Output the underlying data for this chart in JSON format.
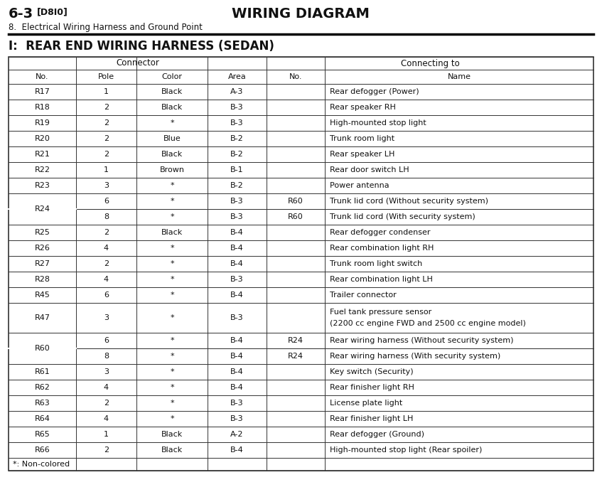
{
  "page_header_left_num": "6-3",
  "page_header_left_tag": "[D8I0]",
  "page_header_center": "WIRING DIAGRAM",
  "page_subheader": "8.  Electrical Wiring Harness and Ground Point",
  "section_title": "I:  REAR END WIRING HARNESS (SEDAN)",
  "rows": [
    {
      "no": "R17",
      "pole": "1",
      "color": "Black",
      "area": "A-3",
      "conn_no": "",
      "name": "Rear defogger (Power)",
      "merged": false,
      "tall": false
    },
    {
      "no": "R18",
      "pole": "2",
      "color": "Black",
      "area": "B-3",
      "conn_no": "",
      "name": "Rear speaker RH",
      "merged": false,
      "tall": false
    },
    {
      "no": "R19",
      "pole": "2",
      "color": "*",
      "area": "B-3",
      "conn_no": "",
      "name": "High-mounted stop light",
      "merged": false,
      "tall": false
    },
    {
      "no": "R20",
      "pole": "2",
      "color": "Blue",
      "area": "B-2",
      "conn_no": "",
      "name": "Trunk room light",
      "merged": false,
      "tall": false
    },
    {
      "no": "R21",
      "pole": "2",
      "color": "Black",
      "area": "B-2",
      "conn_no": "",
      "name": "Rear speaker LH",
      "merged": false,
      "tall": false
    },
    {
      "no": "R22",
      "pole": "1",
      "color": "Brown",
      "area": "B-1",
      "conn_no": "",
      "name": "Rear door switch LH",
      "merged": false,
      "tall": false
    },
    {
      "no": "R23",
      "pole": "3",
      "color": "*",
      "area": "B-2",
      "conn_no": "",
      "name": "Power antenna",
      "merged": false,
      "tall": false
    },
    {
      "no": "R24",
      "pole": "6",
      "color": "*",
      "area": "B-3",
      "conn_no": "R60",
      "name": "Trunk lid cord (Without security system)",
      "merged": true,
      "tall": false,
      "sub": false
    },
    {
      "no": "R24",
      "pole": "8",
      "color": "*",
      "area": "B-3",
      "conn_no": "R60",
      "name": "Trunk lid cord (With security system)",
      "merged": true,
      "tall": false,
      "sub": true
    },
    {
      "no": "R25",
      "pole": "2",
      "color": "Black",
      "area": "B-4",
      "conn_no": "",
      "name": "Rear defogger condenser",
      "merged": false,
      "tall": false
    },
    {
      "no": "R26",
      "pole": "4",
      "color": "*",
      "area": "B-4",
      "conn_no": "",
      "name": "Rear combination light RH",
      "merged": false,
      "tall": false
    },
    {
      "no": "R27",
      "pole": "2",
      "color": "*",
      "area": "B-4",
      "conn_no": "",
      "name": "Trunk room light switch",
      "merged": false,
      "tall": false
    },
    {
      "no": "R28",
      "pole": "4",
      "color": "*",
      "area": "B-3",
      "conn_no": "",
      "name": "Rear combination light LH",
      "merged": false,
      "tall": false
    },
    {
      "no": "R45",
      "pole": "6",
      "color": "*",
      "area": "B-4",
      "conn_no": "",
      "name": "Trailer connector",
      "merged": false,
      "tall": false
    },
    {
      "no": "R47",
      "pole": "3",
      "color": "*",
      "area": "B-3",
      "conn_no": "",
      "name": "Fuel tank pressure sensor\n(2200 cc engine FWD and 2500 cc engine model)",
      "merged": false,
      "tall": true
    },
    {
      "no": "R60",
      "pole": "6",
      "color": "*",
      "area": "B-4",
      "conn_no": "R24",
      "name": "Rear wiring harness (Without security system)",
      "merged": true,
      "tall": false,
      "sub": false
    },
    {
      "no": "R60",
      "pole": "8",
      "color": "*",
      "area": "B-4",
      "conn_no": "R24",
      "name": "Rear wiring harness (With security system)",
      "merged": true,
      "tall": false,
      "sub": true
    },
    {
      "no": "R61",
      "pole": "3",
      "color": "*",
      "area": "B-4",
      "conn_no": "",
      "name": "Key switch (Security)",
      "merged": false,
      "tall": false
    },
    {
      "no": "R62",
      "pole": "4",
      "color": "*",
      "area": "B-4",
      "conn_no": "",
      "name": "Rear finisher light RH",
      "merged": false,
      "tall": false
    },
    {
      "no": "R63",
      "pole": "2",
      "color": "*",
      "area": "B-3",
      "conn_no": "",
      "name": "License plate light",
      "merged": false,
      "tall": false
    },
    {
      "no": "R64",
      "pole": "4",
      "color": "*",
      "area": "B-3",
      "conn_no": "",
      "name": "Rear finisher light LH",
      "merged": false,
      "tall": false
    },
    {
      "no": "R65",
      "pole": "1",
      "color": "Black",
      "area": "A-2",
      "conn_no": "",
      "name": "Rear defogger (Ground)",
      "merged": false,
      "tall": false
    },
    {
      "no": "R66",
      "pole": "2",
      "color": "Black",
      "area": "B-4",
      "conn_no": "",
      "name": "High-mounted stop light (Rear spoiler)",
      "merged": false,
      "tall": false
    }
  ],
  "footnote": "*: Non-colored",
  "bg_color": "#ffffff",
  "line_color": "#333333",
  "text_color": "#111111"
}
